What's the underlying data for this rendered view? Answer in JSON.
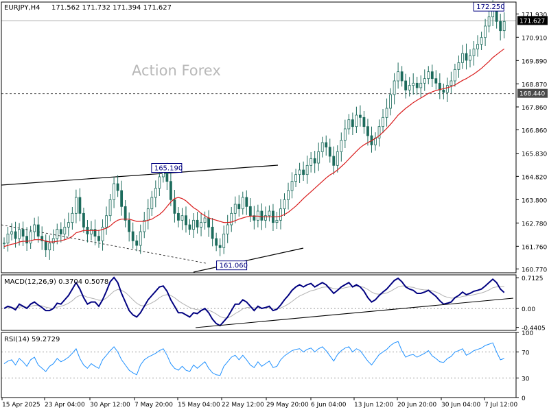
{
  "header": {
    "symbol": "EURJPY,H4",
    "ohlc": "171.562 171.732 171.394 171.627"
  },
  "watermark": "Action Forex",
  "colors": {
    "candle": "#1c6b5c",
    "ma": "#d91c1c",
    "macd": "#000080",
    "signal": "#b0b0b0",
    "rsi": "#1e90ff",
    "grid": "#c8c8c8",
    "frame": "#000000",
    "label_box": "#000080"
  },
  "chart_data": [
    {
      "type": "line",
      "title": "EURJPY,H4 171.562 171.732 171.394 171.627",
      "ylim": [
        160.6,
        172.45
      ],
      "yticks": [
        171.93,
        170.91,
        169.89,
        168.87,
        167.86,
        166.86,
        165.83,
        164.82,
        163.8,
        162.78,
        161.76,
        160.77
      ],
      "xticks": [
        "15 Apr 2025",
        "23 Apr 04:00",
        "30 Apr 12:00",
        "7 May 20:00",
        "15 May 04:00",
        "22 May 12:00",
        "29 May 20:00",
        "6 Jun 04:00",
        "13 Jun 12:00",
        "20 Jun 20:00",
        "30 Jun 04:00",
        "7 Jul 12:00"
      ],
      "current_price": "171.627",
      "current_value": 171.627,
      "support_level": "168.440",
      "support_value": 168.44,
      "annotations": [
        {
          "label": "172.250",
          "value": 172.25,
          "bar": 185
        },
        {
          "label": "165.190",
          "value": 165.19,
          "bar": 60
        },
        {
          "label": "161.060",
          "value": 161.06,
          "bar": 84
        }
      ],
      "series": [
        {
          "values": [
            161.9,
            162.3,
            162.4,
            162.1,
            162.5,
            162.2,
            161.9,
            162.4,
            162.7,
            162.2,
            162.0,
            161.6,
            161.9,
            162.1,
            162.5,
            162.3,
            162.6,
            162.8,
            163.2,
            163.9,
            163.2,
            162.6,
            162.3,
            162.5,
            162.2,
            162.0,
            162.6,
            163.1,
            163.8,
            164.5,
            164.2,
            163.5,
            162.9,
            162.4,
            162.0,
            161.8,
            162.4,
            162.9,
            163.4,
            163.9,
            164.3,
            164.8,
            165.1,
            164.6,
            163.8,
            163.2,
            162.9,
            163.1,
            162.7,
            162.5,
            162.9,
            162.6,
            162.8,
            163.0,
            162.6,
            162.1,
            161.8,
            161.7,
            162.3,
            162.7,
            163.2,
            163.6,
            163.4,
            163.9,
            163.5,
            163.1,
            162.9,
            163.3,
            162.9,
            163.1,
            163.3,
            162.8,
            162.9,
            163.4,
            163.8,
            164.2,
            164.6,
            164.9,
            165.1,
            164.9,
            165.3,
            165.6,
            165.4,
            165.9,
            166.3,
            166.1,
            165.7,
            165.3,
            165.9,
            166.4,
            166.9,
            167.3,
            167.0,
            167.5,
            167.4,
            167.0,
            166.6,
            166.2,
            166.5,
            167.0,
            167.4,
            167.8,
            168.4,
            169.0,
            169.4,
            169.0,
            168.6,
            168.8,
            168.9,
            168.7,
            168.9,
            169.1,
            169.4,
            169.1,
            168.9,
            168.6,
            168.5,
            168.8,
            169.0,
            169.5,
            169.8,
            170.2,
            169.9,
            170.1,
            170.4,
            170.6,
            170.9,
            171.4,
            171.8,
            172.1,
            171.6,
            171.2,
            171.6
          ],
          "name": ""
        },
        {
          "values": [
            161.75,
            161.8,
            161.85,
            161.88,
            161.95,
            161.98,
            161.98,
            162.0,
            162.05,
            162.05,
            162.05,
            161.98,
            161.95,
            161.95,
            161.98,
            162.0,
            162.05,
            162.1,
            162.2,
            162.35,
            162.4,
            162.45,
            162.45,
            162.45,
            162.45,
            162.45,
            162.5,
            162.55,
            162.65,
            162.8,
            162.9,
            162.95,
            162.95,
            162.95,
            162.9,
            162.85,
            162.85,
            162.85,
            162.9,
            162.95,
            163.05,
            163.15,
            163.3,
            163.5,
            163.7,
            163.85,
            163.9,
            163.85,
            163.75,
            163.6,
            163.45,
            163.35,
            163.2,
            163.1,
            163.0,
            162.95,
            162.9,
            162.85,
            162.8,
            162.8,
            162.82,
            162.88,
            162.95,
            163.0,
            163.05,
            163.08,
            163.08,
            163.08,
            163.05,
            163.05,
            163.05,
            163.05,
            163.05,
            163.08,
            163.15,
            163.25,
            163.38,
            163.52,
            163.68,
            163.85,
            164.0,
            164.15,
            164.3,
            164.45,
            164.6,
            164.75,
            164.88,
            164.98,
            165.1,
            165.25,
            165.4,
            165.58,
            165.75,
            165.92,
            166.08,
            166.2,
            166.3,
            166.38,
            166.48,
            166.6,
            166.75,
            166.92,
            167.1,
            167.3,
            167.5,
            167.65,
            167.8,
            167.92,
            168.05,
            168.15,
            168.25,
            168.35,
            168.45,
            168.52,
            168.58,
            168.62,
            168.66,
            168.7,
            168.75,
            168.82,
            168.92,
            169.02,
            169.1,
            169.2,
            169.3,
            169.42,
            169.55,
            169.7,
            169.85,
            170.02,
            170.15,
            170.28,
            170.4
          ],
          "name": ""
        }
      ]
    },
    {
      "type": "line",
      "title": "MACD(12,26,9) 0.3704 0.5078",
      "ylim": [
        -0.51,
        0.78
      ],
      "yticks": [
        0.7125,
        0.0,
        -0.4405
      ],
      "ytick_labels": [
        "0.7125",
        "0.00",
        "-0.4405"
      ],
      "series": [
        {
          "values": [
            0.0,
            0.05,
            0.02,
            -0.03,
            0.1,
            0.05,
            0.0,
            0.1,
            0.15,
            0.08,
            0.02,
            -0.05,
            -0.05,
            0.0,
            0.12,
            0.1,
            0.2,
            0.3,
            0.45,
            0.6,
            0.45,
            0.25,
            0.1,
            0.15,
            0.15,
            0.05,
            0.2,
            0.4,
            0.62,
            0.72,
            0.6,
            0.35,
            0.15,
            -0.05,
            -0.15,
            -0.2,
            -0.1,
            0.05,
            0.2,
            0.3,
            0.4,
            0.5,
            0.52,
            0.4,
            0.2,
            0.05,
            -0.1,
            -0.1,
            -0.15,
            -0.2,
            -0.1,
            -0.12,
            -0.05,
            0.0,
            -0.1,
            -0.25,
            -0.35,
            -0.4,
            -0.3,
            -0.2,
            -0.05,
            0.1,
            0.1,
            0.2,
            0.15,
            0.05,
            -0.05,
            0.05,
            0.0,
            0.02,
            0.05,
            -0.05,
            -0.02,
            0.08,
            0.2,
            0.3,
            0.42,
            0.5,
            0.55,
            0.5,
            0.55,
            0.58,
            0.5,
            0.55,
            0.6,
            0.55,
            0.45,
            0.35,
            0.42,
            0.5,
            0.55,
            0.6,
            0.5,
            0.55,
            0.5,
            0.4,
            0.25,
            0.15,
            0.2,
            0.3,
            0.38,
            0.45,
            0.55,
            0.65,
            0.7,
            0.62,
            0.5,
            0.45,
            0.42,
            0.35,
            0.35,
            0.38,
            0.42,
            0.35,
            0.28,
            0.18,
            0.1,
            0.12,
            0.15,
            0.25,
            0.3,
            0.38,
            0.32,
            0.35,
            0.4,
            0.42,
            0.45,
            0.52,
            0.6,
            0.68,
            0.6,
            0.45,
            0.37
          ],
          "name": ""
        },
        {
          "values": [
            0.0,
            0.02,
            0.02,
            0.01,
            0.03,
            0.04,
            0.03,
            0.05,
            0.07,
            0.07,
            0.06,
            0.03,
            0.01,
            0.0,
            0.03,
            0.05,
            0.08,
            0.12,
            0.18,
            0.26,
            0.3,
            0.3,
            0.26,
            0.24,
            0.22,
            0.19,
            0.19,
            0.24,
            0.32,
            0.4,
            0.44,
            0.42,
            0.37,
            0.29,
            0.2,
            0.12,
            0.07,
            0.06,
            0.09,
            0.13,
            0.18,
            0.25,
            0.3,
            0.32,
            0.3,
            0.25,
            0.18,
            0.12,
            0.07,
            0.02,
            -0.01,
            -0.03,
            -0.04,
            -0.03,
            -0.04,
            -0.08,
            -0.13,
            -0.19,
            -0.22,
            -0.22,
            -0.18,
            -0.12,
            -0.07,
            -0.01,
            0.02,
            0.03,
            0.01,
            0.02,
            0.01,
            0.01,
            0.02,
            0.0,
            0.0,
            0.01,
            0.05,
            0.1,
            0.16,
            0.23,
            0.29,
            0.33,
            0.37,
            0.41,
            0.43,
            0.46,
            0.49,
            0.5,
            0.49,
            0.46,
            0.45,
            0.46,
            0.48,
            0.5,
            0.5,
            0.51,
            0.51,
            0.49,
            0.44,
            0.38,
            0.34,
            0.33,
            0.34,
            0.36,
            0.4,
            0.45,
            0.5,
            0.52,
            0.52,
            0.5,
            0.49,
            0.46,
            0.44,
            0.43,
            0.43,
            0.41,
            0.38,
            0.34,
            0.29,
            0.26,
            0.24,
            0.24,
            0.25,
            0.28,
            0.29,
            0.3,
            0.32,
            0.34,
            0.36,
            0.39,
            0.43,
            0.48,
            0.5,
            0.5,
            0.51
          ],
          "name": ""
        }
      ]
    },
    {
      "type": "line",
      "title": "RSI(14) 59.2729",
      "ylim": [
        0,
        100
      ],
      "yticks": [
        100,
        70,
        30,
        0
      ],
      "ytick_labels": [
        "100",
        "70",
        "30",
        "0"
      ],
      "series": [
        {
          "values": [
            52,
            56,
            58,
            50,
            60,
            55,
            48,
            58,
            62,
            50,
            45,
            40,
            48,
            52,
            60,
            55,
            58,
            62,
            68,
            75,
            60,
            50,
            45,
            52,
            48,
            45,
            58,
            65,
            72,
            78,
            70,
            58,
            50,
            42,
            38,
            35,
            50,
            58,
            62,
            65,
            68,
            72,
            75,
            65,
            52,
            45,
            42,
            48,
            42,
            40,
            50,
            45,
            50,
            55,
            45,
            38,
            35,
            34,
            48,
            55,
            62,
            65,
            58,
            65,
            58,
            50,
            46,
            55,
            48,
            52,
            56,
            46,
            48,
            58,
            64,
            68,
            72,
            74,
            75,
            70,
            74,
            76,
            70,
            75,
            78,
            72,
            64,
            56,
            66,
            72,
            76,
            78,
            70,
            75,
            72,
            64,
            56,
            50,
            58,
            66,
            70,
            74,
            80,
            84,
            86,
            72,
            62,
            65,
            66,
            62,
            65,
            68,
            72,
            64,
            60,
            55,
            54,
            60,
            63,
            70,
            72,
            75,
            65,
            68,
            72,
            74,
            76,
            80,
            82,
            84,
            70,
            58,
            60
          ],
          "name": ""
        }
      ]
    }
  ]
}
